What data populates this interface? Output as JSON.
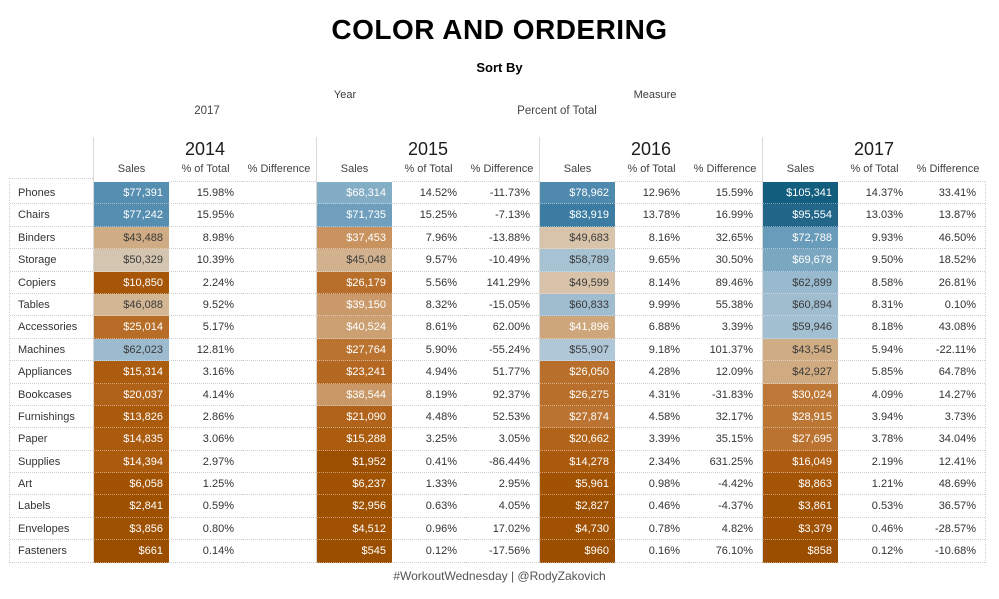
{
  "title": "COLOR AND ORDERING",
  "controls": {
    "sort_by_label": "Sort By",
    "year_label": "Year",
    "year_value": "2017",
    "measure_label": "Measure",
    "measure_value": "Percent of Total"
  },
  "footer": "#WorkoutWednesday | @RodyZakovich",
  "chart_data": {
    "type": "table",
    "subtype": "highlight-table",
    "title": "COLOR AND ORDERING",
    "years": [
      "2014",
      "2015",
      "2016",
      "2017"
    ],
    "measures": [
      "Sales",
      "% of Total",
      "% Difference"
    ],
    "color_scale": {
      "field": "Sales",
      "palette": "orange-blue-diverging",
      "min": 545,
      "max": 105341,
      "stops": [
        [
          0.0,
          "#9c4e00"
        ],
        [
          0.1,
          "#a65606"
        ],
        [
          0.2,
          "#b2641c"
        ],
        [
          0.3,
          "#c07d3e"
        ],
        [
          0.4,
          "#cfa87e"
        ],
        [
          0.47,
          "#d8c4ab"
        ],
        [
          0.52,
          "#b3c9d8"
        ],
        [
          0.63,
          "#8db2c9"
        ],
        [
          0.7,
          "#6297b7"
        ],
        [
          0.8,
          "#3a7ba2"
        ],
        [
          0.9,
          "#23688b"
        ],
        [
          1.0,
          "#135e7e"
        ]
      ]
    },
    "rows": [
      {
        "category": "Phones",
        "values": [
          [
            "$77,391",
            "15.98%",
            ""
          ],
          [
            "$68,314",
            "14.52%",
            "-11.73%"
          ],
          [
            "$78,962",
            "12.96%",
            "15.59%"
          ],
          [
            "$105,341",
            "14.37%",
            "33.41%"
          ]
        ]
      },
      {
        "category": "Chairs",
        "values": [
          [
            "$77,242",
            "15.95%",
            ""
          ],
          [
            "$71,735",
            "15.25%",
            "-7.13%"
          ],
          [
            "$83,919",
            "13.78%",
            "16.99%"
          ],
          [
            "$95,554",
            "13.03%",
            "13.87%"
          ]
        ]
      },
      {
        "category": "Binders",
        "values": [
          [
            "$43,488",
            "8.98%",
            ""
          ],
          [
            "$37,453",
            "7.96%",
            "-13.88%"
          ],
          [
            "$49,683",
            "8.16%",
            "32.65%"
          ],
          [
            "$72,788",
            "9.93%",
            "46.50%"
          ]
        ]
      },
      {
        "category": "Storage",
        "values": [
          [
            "$50,329",
            "10.39%",
            ""
          ],
          [
            "$45,048",
            "9.57%",
            "-10.49%"
          ],
          [
            "$58,789",
            "9.65%",
            "30.50%"
          ],
          [
            "$69,678",
            "9.50%",
            "18.52%"
          ]
        ]
      },
      {
        "category": "Copiers",
        "values": [
          [
            "$10,850",
            "2.24%",
            ""
          ],
          [
            "$26,179",
            "5.56%",
            "141.29%"
          ],
          [
            "$49,599",
            "8.14%",
            "89.46%"
          ],
          [
            "$62,899",
            "8.58%",
            "26.81%"
          ]
        ]
      },
      {
        "category": "Tables",
        "values": [
          [
            "$46,088",
            "9.52%",
            ""
          ],
          [
            "$39,150",
            "8.32%",
            "-15.05%"
          ],
          [
            "$60,833",
            "9.99%",
            "55.38%"
          ],
          [
            "$60,894",
            "8.31%",
            "0.10%"
          ]
        ]
      },
      {
        "category": "Accessories",
        "values": [
          [
            "$25,014",
            "5.17%",
            ""
          ],
          [
            "$40,524",
            "8.61%",
            "62.00%"
          ],
          [
            "$41,896",
            "6.88%",
            "3.39%"
          ],
          [
            "$59,946",
            "8.18%",
            "43.08%"
          ]
        ]
      },
      {
        "category": "Machines",
        "values": [
          [
            "$62,023",
            "12.81%",
            ""
          ],
          [
            "$27,764",
            "5.90%",
            "-55.24%"
          ],
          [
            "$55,907",
            "9.18%",
            "101.37%"
          ],
          [
            "$43,545",
            "5.94%",
            "-22.11%"
          ]
        ]
      },
      {
        "category": "Appliances",
        "values": [
          [
            "$15,314",
            "3.16%",
            ""
          ],
          [
            "$23,241",
            "4.94%",
            "51.77%"
          ],
          [
            "$26,050",
            "4.28%",
            "12.09%"
          ],
          [
            "$42,927",
            "5.85%",
            "64.78%"
          ]
        ]
      },
      {
        "category": "Bookcases",
        "values": [
          [
            "$20,037",
            "4.14%",
            ""
          ],
          [
            "$38,544",
            "8.19%",
            "92.37%"
          ],
          [
            "$26,275",
            "4.31%",
            "-31.83%"
          ],
          [
            "$30,024",
            "4.09%",
            "14.27%"
          ]
        ]
      },
      {
        "category": "Furnishings",
        "values": [
          [
            "$13,826",
            "2.86%",
            ""
          ],
          [
            "$21,090",
            "4.48%",
            "52.53%"
          ],
          [
            "$27,874",
            "4.58%",
            "32.17%"
          ],
          [
            "$28,915",
            "3.94%",
            "3.73%"
          ]
        ]
      },
      {
        "category": "Paper",
        "values": [
          [
            "$14,835",
            "3.06%",
            ""
          ],
          [
            "$15,288",
            "3.25%",
            "3.05%"
          ],
          [
            "$20,662",
            "3.39%",
            "35.15%"
          ],
          [
            "$27,695",
            "3.78%",
            "34.04%"
          ]
        ]
      },
      {
        "category": "Supplies",
        "values": [
          [
            "$14,394",
            "2.97%",
            ""
          ],
          [
            "$1,952",
            "0.41%",
            "-86.44%"
          ],
          [
            "$14,278",
            "2.34%",
            "631.25%"
          ],
          [
            "$16,049",
            "2.19%",
            "12.41%"
          ]
        ]
      },
      {
        "category": "Art",
        "values": [
          [
            "$6,058",
            "1.25%",
            ""
          ],
          [
            "$6,237",
            "1.33%",
            "2.95%"
          ],
          [
            "$5,961",
            "0.98%",
            "-4.42%"
          ],
          [
            "$8,863",
            "1.21%",
            "48.69%"
          ]
        ]
      },
      {
        "category": "Labels",
        "values": [
          [
            "$2,841",
            "0.59%",
            ""
          ],
          [
            "$2,956",
            "0.63%",
            "4.05%"
          ],
          [
            "$2,827",
            "0.46%",
            "-4.37%"
          ],
          [
            "$3,861",
            "0.53%",
            "36.57%"
          ]
        ]
      },
      {
        "category": "Envelopes",
        "values": [
          [
            "$3,856",
            "0.80%",
            ""
          ],
          [
            "$4,512",
            "0.96%",
            "17.02%"
          ],
          [
            "$4,730",
            "0.78%",
            "4.82%"
          ],
          [
            "$3,379",
            "0.46%",
            "-28.57%"
          ]
        ]
      },
      {
        "category": "Fasteners",
        "values": [
          [
            "$661",
            "0.14%",
            ""
          ],
          [
            "$545",
            "0.12%",
            "-17.56%"
          ],
          [
            "$960",
            "0.16%",
            "76.10%"
          ],
          [
            "$858",
            "0.12%",
            "-10.68%"
          ]
        ]
      }
    ]
  }
}
